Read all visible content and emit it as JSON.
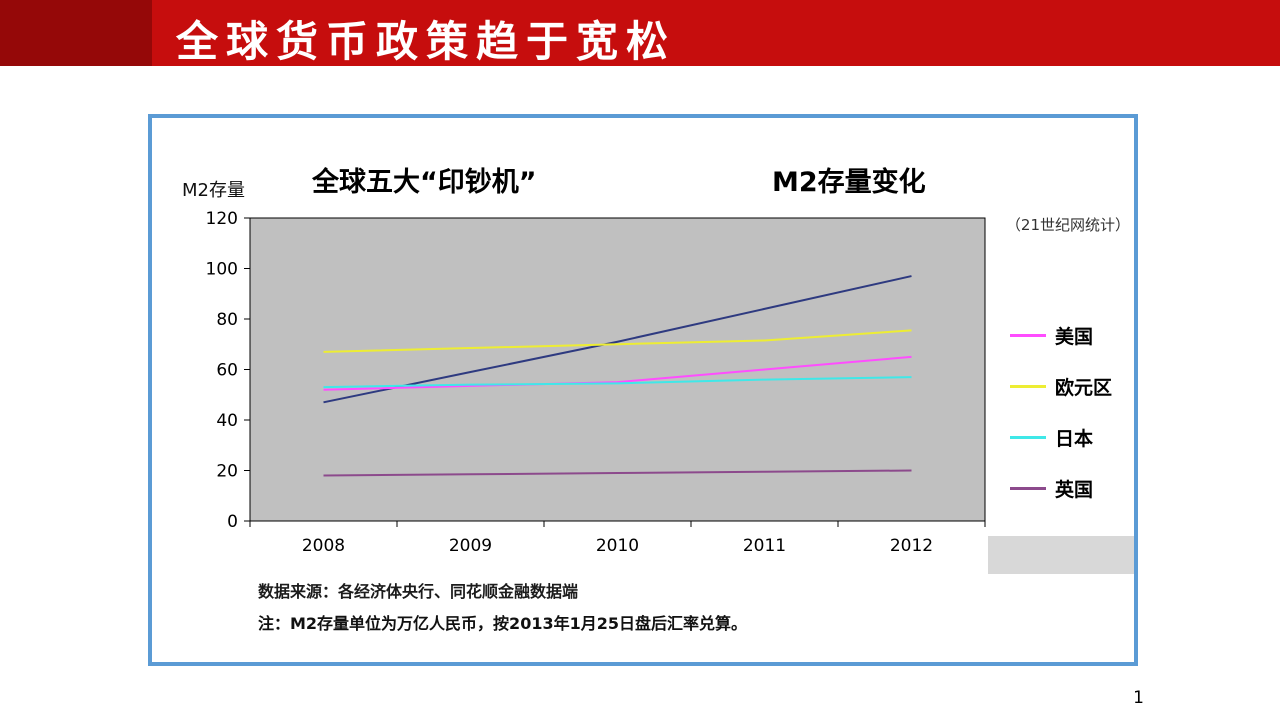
{
  "slide": {
    "title": "全球货币政策趋于宽松",
    "page_number": "1"
  },
  "chart": {
    "y_axis_label": "M2存量",
    "title_left": "全球五大“印钞机”",
    "title_right": "M2存量变化",
    "stat_note": "（21世纪网统计）",
    "source_line": "数据来源：各经济体央行、同花顺金融数据端",
    "note_line": "注：M2存量单位为万亿人民币，按2013年1月25日盘后汇率兑算。"
  },
  "chart_data": {
    "type": "line",
    "title": "全球五大“印钞机” M2存量变化",
    "xlabel": "",
    "ylabel": "M2存量",
    "categories": [
      "2008",
      "2009",
      "2010",
      "2011",
      "2012"
    ],
    "series": [
      {
        "name": "",
        "legend_visible": false,
        "color": "#2e3a80",
        "values": [
          47,
          59,
          71,
          84,
          97
        ]
      },
      {
        "name": "美国",
        "legend_visible": true,
        "color": "#ff4dff",
        "values": [
          52,
          53.5,
          55,
          60,
          65
        ]
      },
      {
        "name": "欧元区",
        "legend_visible": true,
        "color": "#eded33",
        "values": [
          67,
          68.5,
          70,
          71.5,
          75.5
        ]
      },
      {
        "name": "日本",
        "legend_visible": true,
        "color": "#3fe8e8",
        "values": [
          53,
          54,
          54.5,
          56,
          57
        ]
      },
      {
        "name": "英国",
        "legend_visible": true,
        "color": "#8c4a8c",
        "values": [
          18,
          18.5,
          19,
          19.5,
          20
        ]
      }
    ],
    "ylim": [
      0,
      120
    ],
    "yticks": [
      0,
      20,
      40,
      60,
      80,
      100,
      120
    ],
    "plot_bg": "#c0c0c0",
    "grid": false,
    "legend_position": "right"
  },
  "colors": {
    "header_red": "#c60d0d",
    "header_dark_red": "#950808",
    "card_border": "#5b9bd5"
  }
}
